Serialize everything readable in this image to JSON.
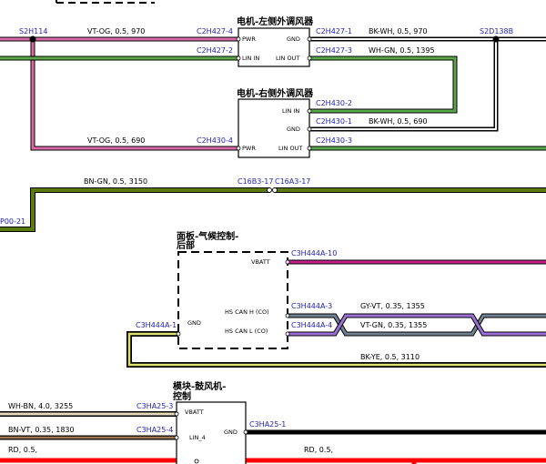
{
  "colors": {
    "conn_label": "#1f1fb5",
    "pink": "#d96aa6",
    "green": "#5aa84a",
    "olive": "#5a7a10",
    "magenta": "#c81e8a",
    "violet": "#9b6fd6",
    "gray": "#708090",
    "yellow": "#e0e070",
    "brown": "#a07850",
    "red": "#ff0000",
    "black": "#000000"
  },
  "components": {
    "left_blower": {
      "title": "电机-左侧外调风器",
      "pins": {
        "pwr": "PWR",
        "gnd": "GND",
        "lin_in": "LIN IN",
        "lin_out": "LIN OUT"
      }
    },
    "right_blower": {
      "title": "电机-右侧外调风器",
      "pins": {
        "lin_in": "LIN IN",
        "gnd": "GND",
        "pwr": "PWR",
        "lin_out": "LIN OUT"
      }
    },
    "climate_panel": {
      "title_line1": "面板-气候控制-",
      "title_line2": "后部",
      "pins": {
        "vbatt": "VBATT",
        "gnd": "GND",
        "hs_can_h": "HS CAN H (CO)",
        "hs_can_l": "HS CAN L (CO)"
      }
    },
    "blower_module": {
      "title_line1": "模块-鼓风机-",
      "title_line2": "控制",
      "pins": {
        "vbatt": "VBATT",
        "lin": "LIN_4",
        "gnd": "GND"
      }
    }
  },
  "labels": {
    "splice_s2h114": "S2H114",
    "wire_vt_og_970": "VT-OG,  0.5,  970",
    "c2h427_4": "C2H427-4",
    "c2h427_2": "C2H427-2",
    "c2h427_1": "C2H427-1",
    "c2h427_3": "C2H427-3",
    "wire_bk_wh_970": "BK-WH,  0.5,  970",
    "wire_wh_gn_1395": "WH-GN,  0.5,  1395",
    "splice_s2d138b": "S2D138B",
    "c2h430_2": "C2H430-2",
    "c2h430_1": "C2H430-1",
    "wire_bk_wh_690": "BK-WH,  0.5,  690",
    "c2h430_3": "C2H430-3",
    "wire_vt_og_690": "VT-OG,  0.5,  690",
    "c2h430_4": "C2H430-4",
    "wire_bn_gn_3150": "BN-GN,  0.5,  3150",
    "c16b3_17": "C16B3-17",
    "c16a3_17": "C16A3-17",
    "p00_21": "P00-21",
    "c3h444a_10": "C3H444A-10",
    "c3h444a_3": "C3H444A-3",
    "wire_gy_vt_1355": "GY-VT,  0.35,  1355",
    "c3h444a_4": "C3H444A-4",
    "wire_vt_gn_1355": "VT-GN,  0.35,  1355",
    "c3h444a_1": "C3H444A-1",
    "wire_bk_ye_3110": "BK-YE,  0.5,  3110",
    "wire_wh_bn_3255": "WH-BN,  4.0,  3255",
    "c3ha25_3": "C3HA25-3",
    "wire_bn_vt_1830": "BN-VT,  0.35,  1830",
    "c3ha25_4": "C3HA25-4",
    "c3ha25_1": "C3HA25-1",
    "wire_rd_left": "RD,  0.5,",
    "wire_rd_right": "RD,  0.5,"
  }
}
